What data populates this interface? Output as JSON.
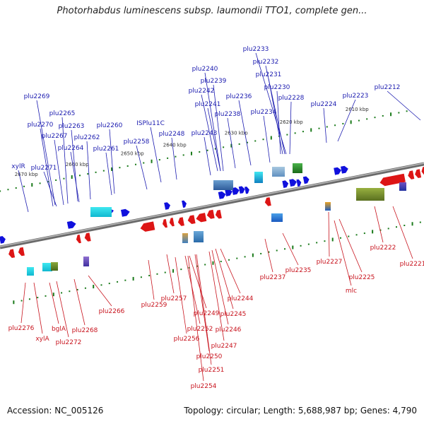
{
  "title": "Photorhabdus luminescens subsp. laumondii TTO1, complete gen...",
  "footer": {
    "accession": "Accession: NC_005126",
    "info": "Topology: circular; Length: 5,688,987 bp; Genes: 4,790"
  },
  "colors": {
    "forward": "#1010dd",
    "reverse": "#dd1515",
    "backbone": "#8a8a8a",
    "tick": "#1a7a1a",
    "label_top": "#1c1cb0",
    "label_bottom": "#c8141e"
  },
  "diagram": {
    "type": "genome-map",
    "axis_ticks": [
      "2610 kbp",
      "2620 kbp",
      "2630 kbp",
      "2640 kbp",
      "2650 kbp",
      "2660 kbp",
      "2670 kbp"
    ],
    "top_labels": [
      "plu2233",
      "plu2232",
      "plu2231",
      "plu2230",
      "plu2228",
      "plu2240",
      "plu2239",
      "plu2242",
      "plu2236",
      "plu2241",
      "plu2238",
      "plu2234",
      "plu2212",
      "plu2223",
      "plu2224",
      "plu2269",
      "plu2265",
      "plu2270",
      "plu2263",
      "plu2267",
      "plu2262",
      "plu2260",
      "plu2264",
      "plu2261",
      "ISPlu11C",
      "plu2258",
      "plu2248",
      "plu2243",
      "xylR",
      "plu2271"
    ],
    "bottom_labels": [
      "plu2222",
      "plu2221",
      "plu2227",
      "plu2235",
      "plu2225",
      "mlc",
      "plu2237",
      "plu2266",
      "plu2259",
      "plu2257",
      "plu2244",
      "plu2245",
      "plu2249",
      "plu2246",
      "plu2252",
      "plu2256",
      "plu2247",
      "plu2250",
      "plu2251",
      "plu2254",
      "plu2276",
      "bglA",
      "xylA",
      "plu2272",
      "plu2268"
    ]
  }
}
